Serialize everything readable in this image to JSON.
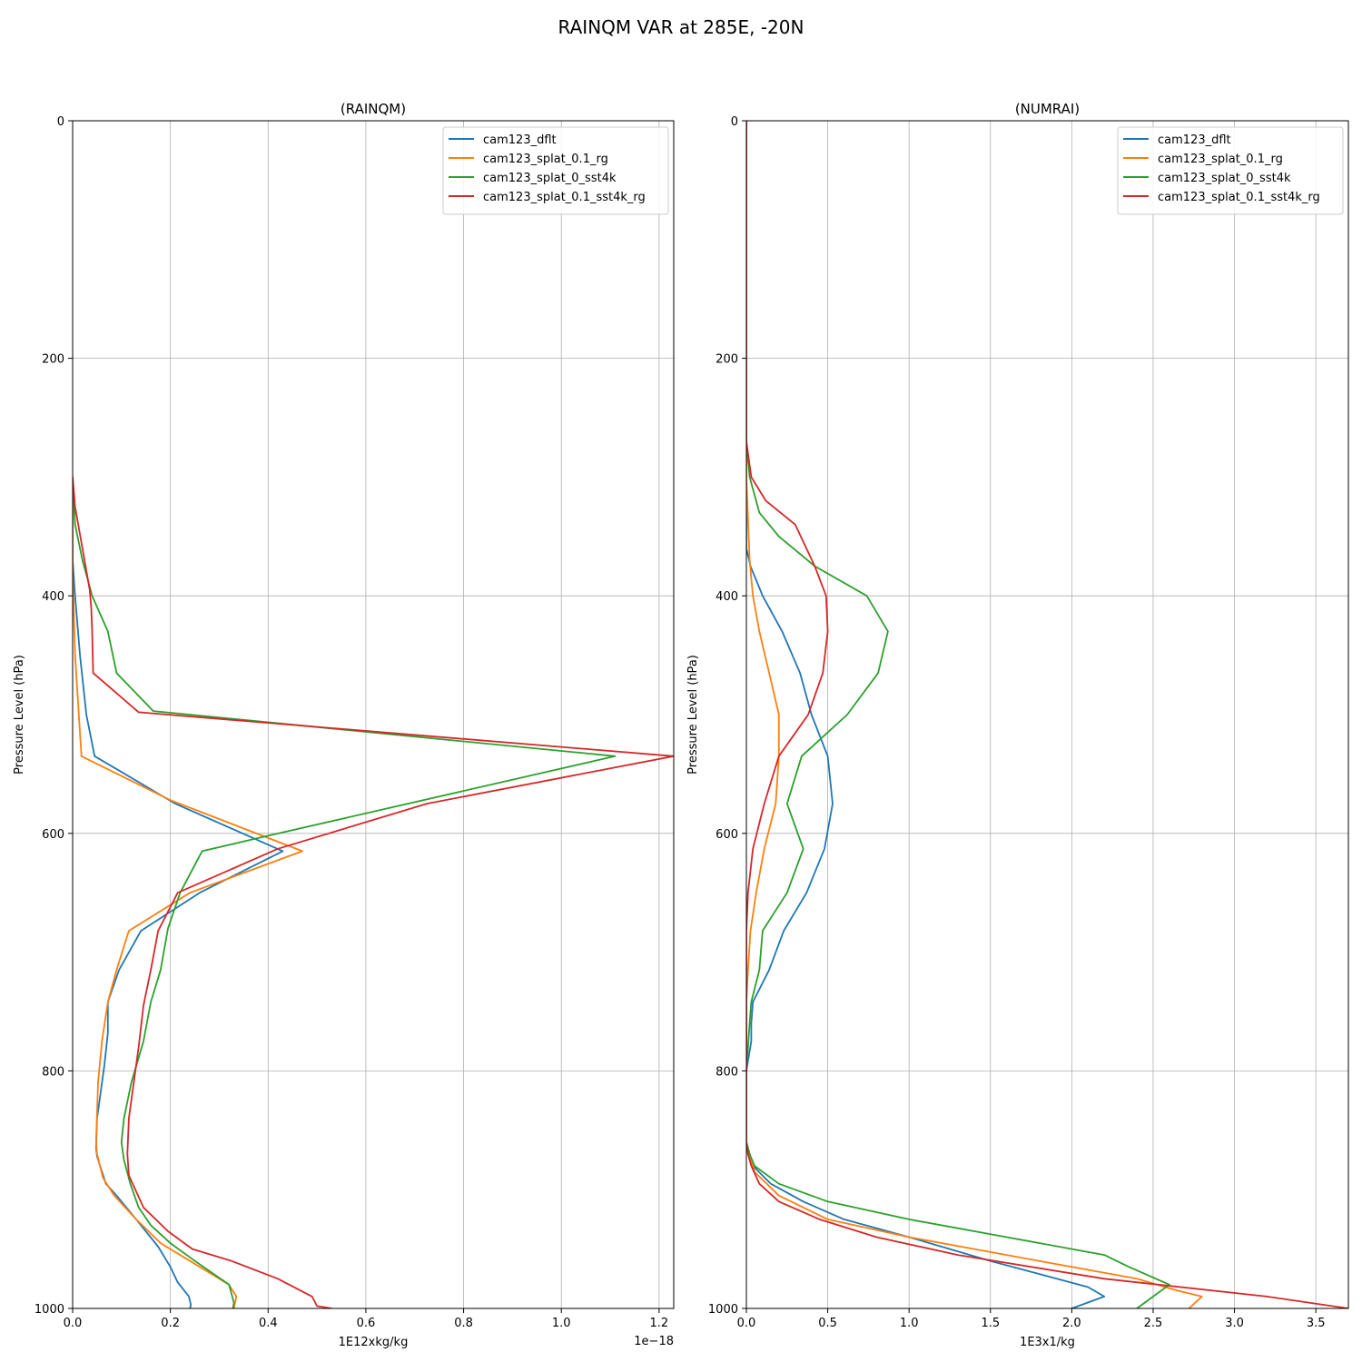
{
  "figure": {
    "title": "RAINQM VAR at 285E, -20N"
  },
  "colors": {
    "cam123_dflt": "#1f77b4",
    "cam123_splat_0.1_rg": "#ff7f0e",
    "cam123_splat_0_sst4k": "#2ca02c",
    "cam123_splat_0.1_sst4k_rg": "#d62728"
  },
  "chart_data": [
    {
      "type": "line",
      "title": "(RAINQM)",
      "xlabel": "1E12xkg/kg",
      "ylabel": "Pressure Level (hPa)",
      "offset_text": "1e−18",
      "xlim": [
        0,
        1.23
      ],
      "ylim": [
        1000,
        0
      ],
      "x_ticks": [
        0.0,
        0.2,
        0.4,
        0.6,
        0.8,
        1.0,
        1.2
      ],
      "x_tick_labels": [
        "0.0",
        "0.2",
        "0.4",
        "0.6",
        "0.8",
        "1.0",
        "1.2"
      ],
      "y_ticks": [
        0,
        200,
        400,
        600,
        800,
        1000
      ],
      "y_tick_labels": [
        "0",
        "200",
        "400",
        "600",
        "800",
        "1000"
      ],
      "grid": true,
      "legend": "top-right",
      "series": [
        {
          "name": "cam123_dflt",
          "color": "#1f77b4",
          "x": [
            0,
            0.0,
            0.005,
            0.015,
            0.028,
            0.045,
            0.21,
            0.43,
            0.26,
            0.14,
            0.095,
            0.072,
            0.072,
            0.065,
            0.05,
            0.048,
            0.05,
            0.068,
            0.09,
            0.13,
            0.175,
            0.2,
            0.215,
            0.238,
            0.242,
            0.24
          ],
          "y": [
            300,
            370,
            400,
            450,
            500,
            535,
            575,
            615,
            650,
            682,
            715,
            742,
            768,
            795,
            840,
            865,
            872,
            895,
            905,
            925,
            948,
            965,
            978,
            990,
            997,
            1000
          ]
        },
        {
          "name": "cam123_splat_0.1_rg",
          "color": "#ff7f0e",
          "x": [
            0,
            0.0,
            0.005,
            0.018,
            0.2,
            0.47,
            0.24,
            0.115,
            0.09,
            0.072,
            0.06,
            0.052,
            0.048,
            0.05,
            0.062,
            0.085,
            0.13,
            0.18,
            0.24,
            0.32,
            0.335,
            0.33
          ],
          "y": [
            300,
            380,
            450,
            535,
            572,
            615,
            650,
            682,
            715,
            742,
            775,
            810,
            860,
            870,
            890,
            905,
            925,
            945,
            960,
            980,
            990,
            1000
          ]
        },
        {
          "name": "cam123_splat_0_sst4k",
          "color": "#2ca02c",
          "x": [
            0,
            0.005,
            0.02,
            0.04,
            0.072,
            0.09,
            0.165,
            1.11,
            0.4,
            0.265,
            0.22,
            0.195,
            0.18,
            0.16,
            0.145,
            0.12,
            0.105,
            0.1,
            0.105,
            0.118,
            0.135,
            0.16,
            0.2,
            0.25,
            0.32,
            0.33,
            0.328
          ],
          "y": [
            300,
            340,
            370,
            400,
            430,
            465,
            497,
            535,
            602,
            615,
            650,
            680,
            715,
            742,
            775,
            810,
            840,
            860,
            875,
            895,
            915,
            930,
            945,
            960,
            980,
            995,
            1000
          ]
        },
        {
          "name": "cam123_splat_0.1_sst4k_rg",
          "color": "#d62728",
          "x": [
            0,
            0.005,
            0.02,
            0.035,
            0.038,
            0.04,
            0.042,
            0.135,
            1.23,
            0.725,
            0.42,
            0.215,
            0.175,
            0.16,
            0.145,
            0.135,
            0.125,
            0.115,
            0.112,
            0.115,
            0.145,
            0.195,
            0.245,
            0.325,
            0.42,
            0.49,
            0.5,
            0.53,
            0.53
          ],
          "y": [
            300,
            325,
            360,
            395,
            410,
            430,
            465,
            498,
            535,
            575,
            613,
            650,
            682,
            715,
            745,
            780,
            810,
            840,
            870,
            888,
            915,
            935,
            950,
            960,
            975,
            990,
            998,
            1000,
            1000
          ]
        }
      ]
    },
    {
      "type": "line",
      "title": "(NUMRAI)",
      "xlabel": "1E3x1/kg",
      "ylabel": "Pressure Level (hPa)",
      "xlim": [
        0,
        3.7
      ],
      "ylim": [
        1000,
        0
      ],
      "x_ticks": [
        0.0,
        0.5,
        1.0,
        1.5,
        2.0,
        2.5,
        3.0,
        3.5
      ],
      "x_tick_labels": [
        "0.0",
        "0.5",
        "1.0",
        "1.5",
        "2.0",
        "2.5",
        "3.0",
        "3.5"
      ],
      "y_ticks": [
        0,
        200,
        400,
        600,
        800,
        1000
      ],
      "y_tick_labels": [
        "0",
        "200",
        "400",
        "600",
        "800",
        "1000"
      ],
      "grid": true,
      "legend": "top-right",
      "series": [
        {
          "name": "cam123_dflt",
          "color": "#1f77b4",
          "x": [
            0,
            0.0,
            0.025,
            0.1,
            0.22,
            0.33,
            0.4,
            0.5,
            0.53,
            0.48,
            0.37,
            0.23,
            0.14,
            0.04,
            0.03,
            0.03,
            0.0,
            0.0,
            0.02,
            0.04,
            0.15,
            0.35,
            0.6,
            1.0,
            1.5,
            2.1,
            2.2,
            2.0,
            1.85,
            1.67
          ],
          "y": [
            0,
            360,
            375,
            400,
            430,
            465,
            500,
            535,
            575,
            613,
            650,
            682,
            715,
            742,
            760,
            775,
            800,
            860,
            870,
            880,
            895,
            910,
            925,
            940,
            960,
            982,
            990,
            1000,
            1010,
            1020
          ]
        },
        {
          "name": "cam123_splat_0.1_rg",
          "color": "#ff7f0e",
          "x": [
            0,
            0.0,
            0.02,
            0.04,
            0.08,
            0.14,
            0.2,
            0.2,
            0.18,
            0.11,
            0.06,
            0.025,
            0.01,
            0.0,
            0.0,
            0.02,
            0.05,
            0.2,
            0.5,
            1.0,
            1.8,
            2.4,
            2.65,
            2.8,
            2.72,
            2.55,
            2.4,
            2.27
          ],
          "y": [
            0,
            300,
            370,
            400,
            430,
            465,
            500,
            535,
            575,
            613,
            650,
            682,
            715,
            742,
            860,
            870,
            885,
            905,
            925,
            940,
            960,
            975,
            985,
            990,
            1000,
            1010,
            1020,
            1025
          ]
        },
        {
          "name": "cam123_splat_0_sst4k",
          "color": "#2ca02c",
          "x": [
            0,
            0.0,
            0.02,
            0.08,
            0.2,
            0.42,
            0.74,
            0.87,
            0.81,
            0.62,
            0.34,
            0.25,
            0.35,
            0.25,
            0.1,
            0.08,
            0.03,
            0.02,
            0.0,
            0.0,
            0.02,
            0.05,
            0.2,
            0.5,
            1.0,
            1.6,
            2.2,
            2.35,
            2.6,
            2.5,
            2.4,
            2.2
          ],
          "y": [
            0,
            270,
            300,
            330,
            350,
            375,
            400,
            430,
            465,
            500,
            535,
            575,
            613,
            650,
            682,
            715,
            742,
            760,
            800,
            860,
            870,
            880,
            895,
            910,
            925,
            940,
            955,
            965,
            980,
            990,
            1000,
            1015
          ]
        },
        {
          "name": "cam123_splat_0.1_sst4k_rg",
          "color": "#d62728",
          "x": [
            0,
            0.0,
            0.03,
            0.12,
            0.3,
            0.42,
            0.49,
            0.5,
            0.47,
            0.38,
            0.2,
            0.11,
            0.04,
            0.01,
            0.0,
            0.0,
            0.01,
            0.03,
            0.08,
            0.2,
            0.45,
            0.8,
            1.3,
            2.2,
            3.2,
            3.7,
            3.68,
            3.55,
            3.33
          ],
          "y": [
            0,
            270,
            300,
            320,
            340,
            375,
            400,
            430,
            465,
            500,
            535,
            575,
            613,
            650,
            682,
            860,
            870,
            880,
            895,
            910,
            925,
            940,
            955,
            975,
            990,
            1000,
            1005,
            1015,
            1025
          ]
        }
      ]
    }
  ]
}
